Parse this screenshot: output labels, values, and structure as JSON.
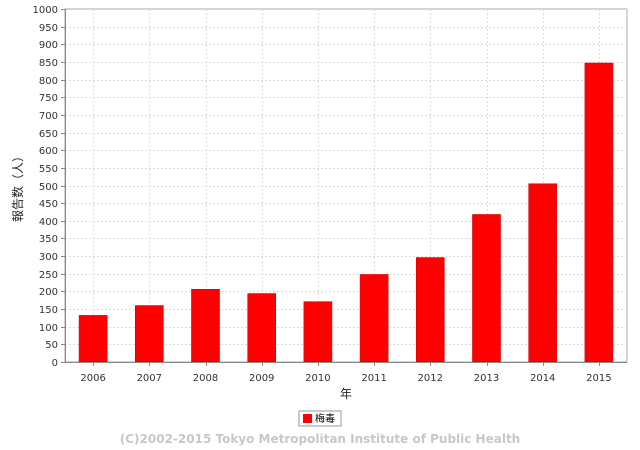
{
  "chart_data": {
    "type": "bar",
    "categories": [
      "2006",
      "2007",
      "2008",
      "2009",
      "2010",
      "2011",
      "2012",
      "2013",
      "2014",
      "2015"
    ],
    "series": [
      {
        "name": "梅毒",
        "values": [
          132,
          160,
          206,
          194,
          171,
          248,
          296,
          418,
          505,
          847
        ],
        "color": "#ff0000"
      }
    ],
    "xlabel": "年",
    "ylabel": "報告数（人）",
    "ylim": [
      0,
      1000
    ],
    "ytick_step": 50,
    "grid": true,
    "legend": "bottom-center"
  },
  "footer": {
    "copyright": "(C)2002-2015 Tokyo Metropolitan Institute of Public Health"
  },
  "colors": {
    "bar": "#ff0000",
    "bar_edge": "#cc0000",
    "grid": "#dcdcdc",
    "axis": "#888888",
    "copyright": "#c8c8c8"
  }
}
